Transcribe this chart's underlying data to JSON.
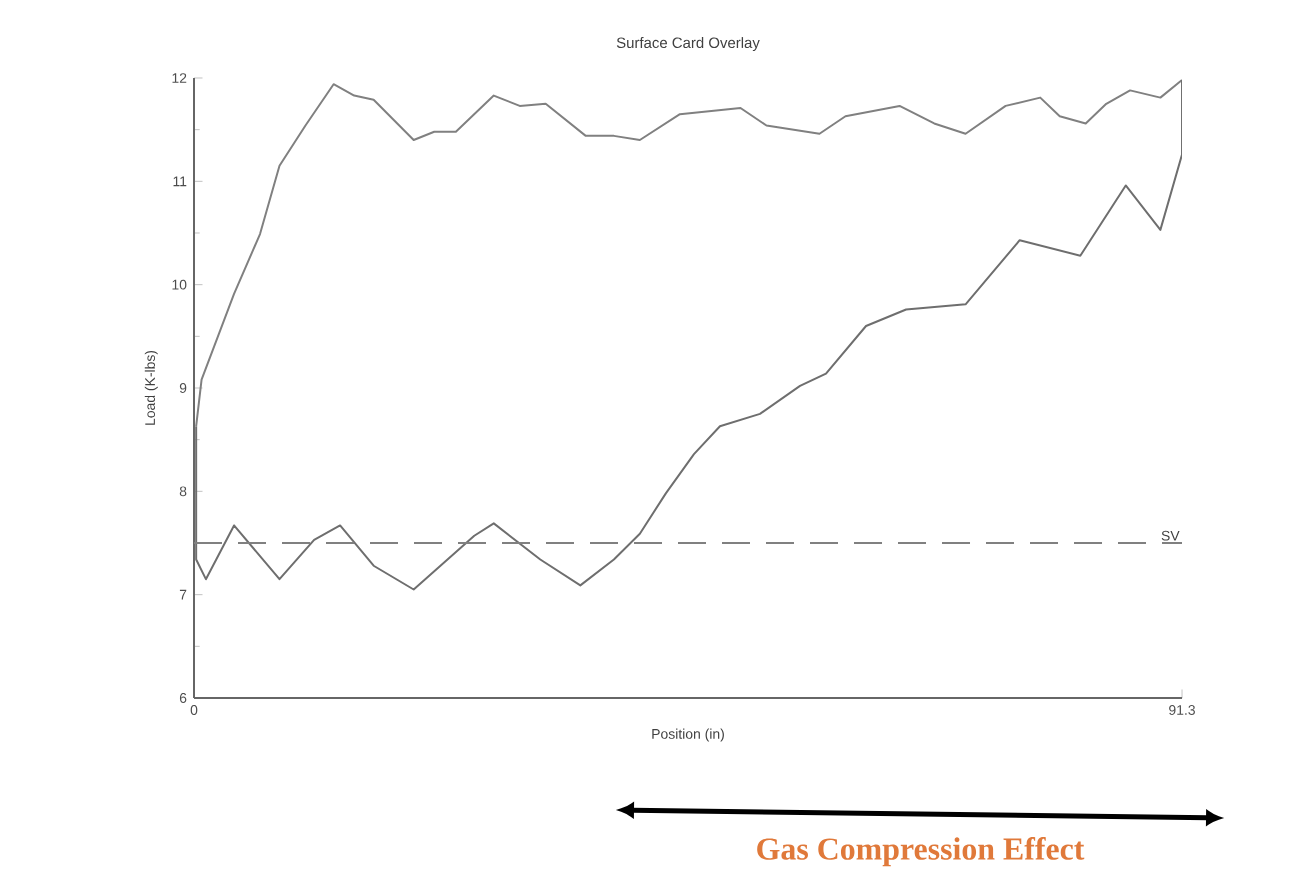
{
  "chart_data": {
    "type": "line",
    "title": "Surface Card Overlay",
    "xlabel": "Position (in)",
    "ylabel": "Load (K-lbs)",
    "xlim": [
      0,
      91.3
    ],
    "xticks": [
      0,
      91.3
    ],
    "ylim": [
      6,
      12
    ],
    "yticks": [
      6,
      7,
      8,
      9,
      10,
      11,
      12
    ],
    "grid": false,
    "line_style": "solid",
    "marker": "none",
    "series": [
      {
        "color": "#808080",
        "x": [
          0.2,
          0.7,
          3.7,
          6.1,
          7.9,
          10.3,
          12.9,
          14.8,
          16.6,
          20.3,
          22.2,
          24.2,
          27.7,
          30.1,
          32.5,
          36.2,
          38.8,
          41.2,
          44.9,
          50.5,
          52.9,
          57.8,
          60.2,
          65.2,
          68.4,
          71.3,
          75.0,
          78.2,
          80.0,
          82.4,
          84.3,
          86.5,
          89.3,
          91.3
        ],
        "values": [
          8.63,
          9.08,
          9.91,
          10.49,
          11.15,
          11.54,
          11.94,
          11.83,
          11.79,
          11.4,
          11.48,
          11.48,
          11.83,
          11.73,
          11.75,
          11.44,
          11.44,
          11.4,
          11.65,
          11.71,
          11.54,
          11.46,
          11.63,
          11.73,
          11.56,
          11.46,
          11.73,
          11.81,
          11.63,
          11.56,
          11.75,
          11.88,
          11.81,
          11.98
        ]
      },
      {
        "color": "#6e6e6e",
        "x": [
          91.3,
          91.3,
          89.3,
          86.1,
          81.9,
          76.3,
          71.3,
          65.8,
          62.1,
          58.4,
          56.0,
          52.3,
          48.6,
          46.2,
          43.6,
          41.2,
          38.8,
          35.7,
          32.0,
          27.7,
          25.9,
          20.3,
          16.6,
          13.5,
          11.1,
          7.9,
          3.7,
          1.1,
          0.2,
          0.2
        ],
        "values": [
          11.98,
          11.26,
          10.53,
          10.96,
          10.28,
          10.43,
          9.81,
          9.76,
          9.6,
          9.14,
          9.02,
          8.75,
          8.63,
          8.36,
          7.98,
          7.59,
          7.34,
          7.09,
          7.34,
          7.69,
          7.57,
          7.05,
          7.28,
          7.67,
          7.53,
          7.15,
          7.67,
          7.15,
          7.34,
          8.63
        ]
      }
    ],
    "ref_lines": [
      {
        "axis": "y",
        "value": 7.5,
        "label": "SV",
        "line_style": "dashed",
        "color": "#808080"
      }
    ],
    "annotations": [
      "Gas Compression Effect"
    ]
  }
}
